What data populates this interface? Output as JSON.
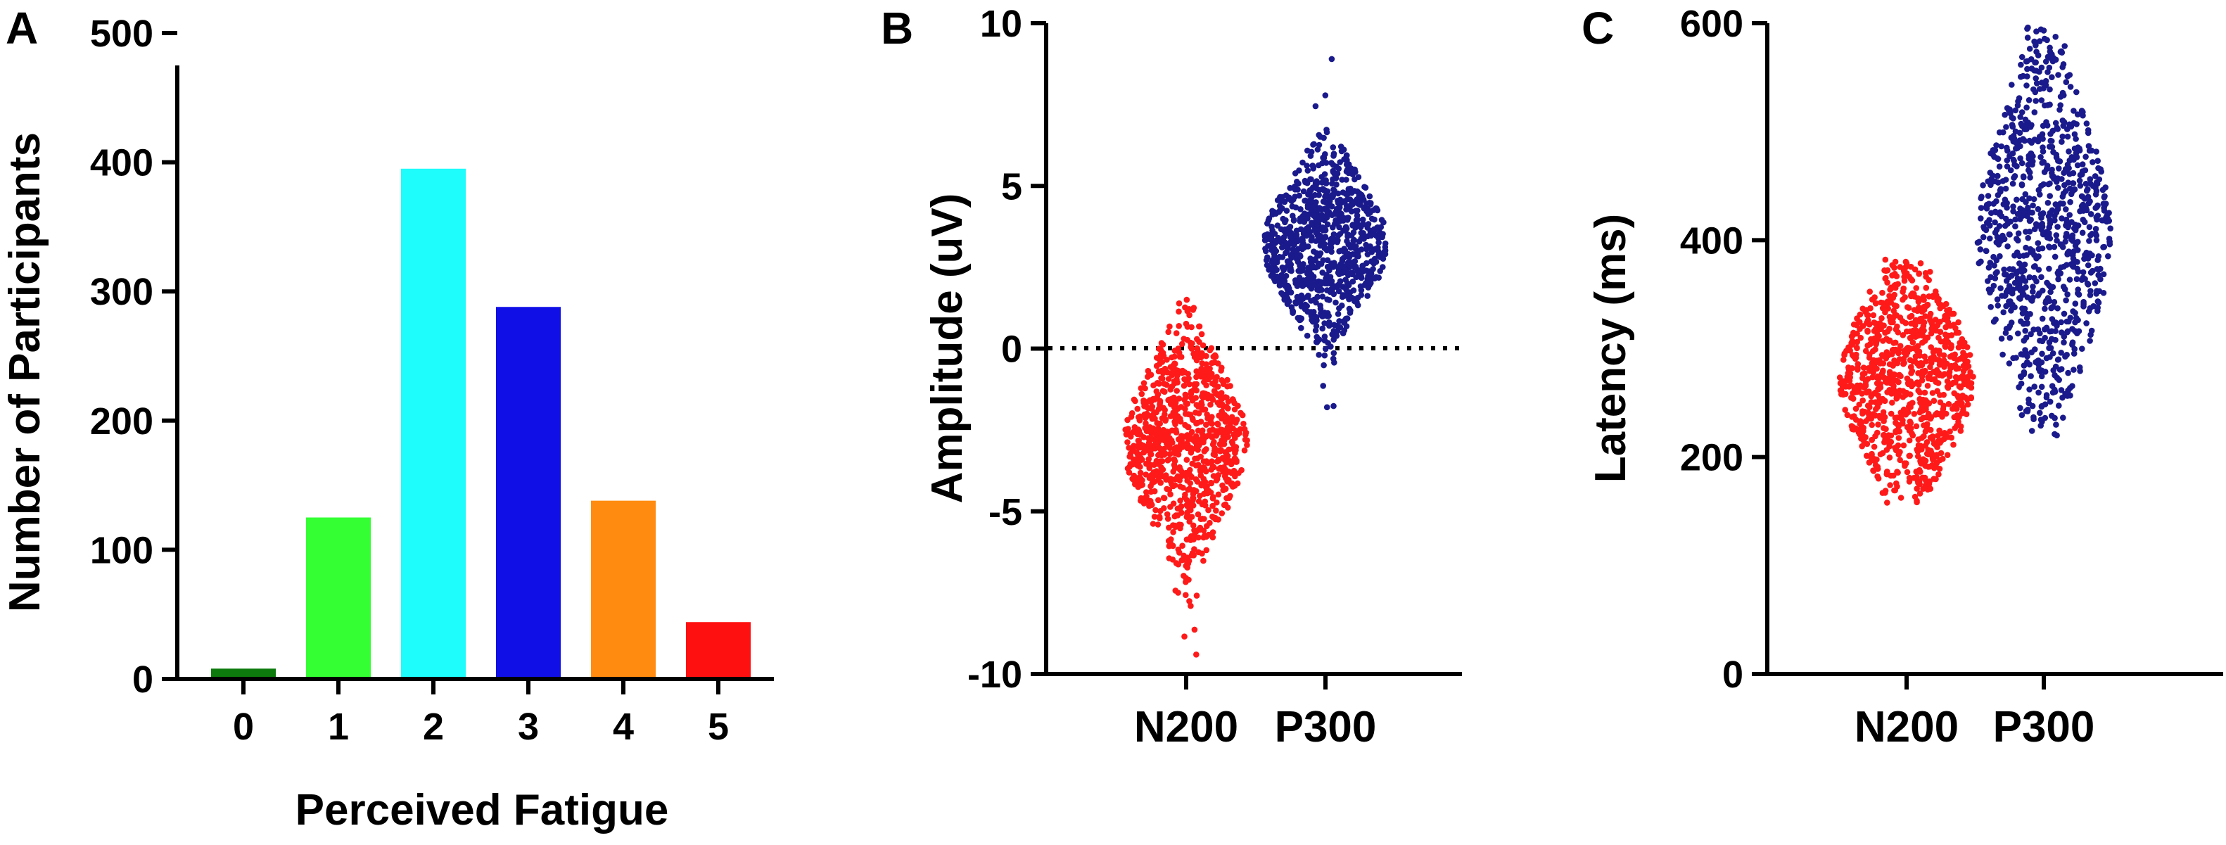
{
  "figure": {
    "panels": [
      "A",
      "B",
      "C"
    ]
  },
  "chart_data": [
    {
      "panel": "A",
      "type": "bar",
      "title": "",
      "xlabel": "Perceived Fatigue",
      "ylabel": "Number of Participants",
      "categories": [
        "0",
        "1",
        "2",
        "3",
        "4",
        "5"
      ],
      "values": [
        8,
        125,
        395,
        288,
        138,
        44
      ],
      "colors": [
        "#0d7a0d",
        "#33ff33",
        "#1efcfc",
        "#1010e6",
        "#ff8c10",
        "#ff1010"
      ],
      "ylim": [
        0,
        500
      ],
      "yticks": [
        0,
        100,
        200,
        300,
        400,
        500
      ],
      "ytick_labels": [
        "0",
        "100",
        "200",
        "300",
        "400",
        "500"
      ],
      "grid": false,
      "legend": "none"
    },
    {
      "panel": "B",
      "type": "scatter",
      "title": "",
      "xlabel": "",
      "ylabel": "Amplitude (uV)",
      "categories": [
        "N200",
        "P300"
      ],
      "ylim": [
        -10,
        10
      ],
      "yticks": [
        -10,
        -5,
        0,
        5,
        10
      ],
      "ytick_labels": [
        "-10",
        "-5",
        "0",
        "5",
        "10"
      ],
      "reference_line": {
        "y": 0,
        "style": "dotted"
      },
      "series": [
        {
          "name": "N200",
          "color": "#ff1a1a",
          "n": 900,
          "center": -2.9,
          "spread_sd": 1.7,
          "min": -9.4,
          "max": 1.5
        },
        {
          "name": "P300",
          "color": "#1a1a8c",
          "n": 900,
          "center": 3.2,
          "spread_sd": 1.4,
          "min": -1.8,
          "max": 8.9
        }
      ],
      "grid": false,
      "legend": "none"
    },
    {
      "panel": "C",
      "type": "scatter",
      "title": "",
      "xlabel": "",
      "ylabel": "Latency (ms)",
      "categories": [
        "N200",
        "P300"
      ],
      "ylim": [
        0,
        600
      ],
      "yticks": [
        0,
        200,
        400,
        600
      ],
      "ytick_labels": [
        "0",
        "200",
        "400",
        "600"
      ],
      "series": [
        {
          "name": "N200",
          "color": "#ff1a1a",
          "n": 900,
          "center": 272,
          "spread_sd": 55,
          "min": 158,
          "max": 382
        },
        {
          "name": "P300",
          "color": "#1a1a8c",
          "n": 900,
          "center": 405,
          "spread_sd": 85,
          "min": 220,
          "max": 596
        }
      ],
      "grid": false,
      "legend": "none"
    }
  ]
}
